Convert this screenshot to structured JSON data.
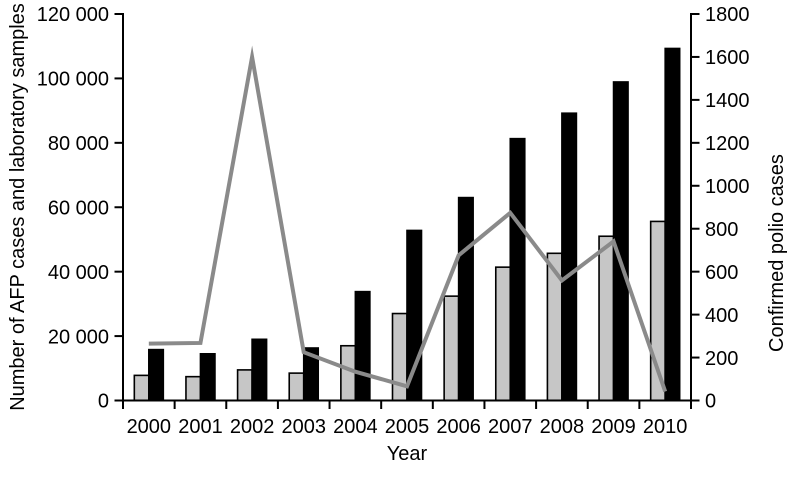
{
  "chart_data": {
    "type": "bar+line",
    "xlabel": "Year",
    "ylabel_left": "Number of AFP cases and laboratory samples",
    "ylabel_right": "Confirmed polio cases",
    "categories": [
      "2000",
      "2001",
      "2002",
      "2003",
      "2004",
      "2005",
      "2006",
      "2007",
      "2008",
      "2009",
      "2010"
    ],
    "series": [
      {
        "id": "afp-cases",
        "name": "AFP cases",
        "type": "bar",
        "axis": "left",
        "color": "#c6c6c6",
        "outline": "#000000",
        "values": [
          7800,
          7400,
          9500,
          8500,
          17000,
          27000,
          32400,
          41400,
          45700,
          51000,
          55600
        ]
      },
      {
        "id": "laboratory-samples",
        "name": "Laboratory samples",
        "type": "bar",
        "axis": "left",
        "color": "#000000",
        "outline": "#000000",
        "values": [
          15800,
          14500,
          19000,
          16300,
          33800,
          52800,
          63000,
          81300,
          89200,
          98900,
          109300
        ]
      },
      {
        "id": "confirmed-polio-cases",
        "name": "Confirmed polio cases",
        "type": "line",
        "axis": "right",
        "color": "#8a8a8a",
        "values": [
          265,
          268,
          1600,
          225,
          134,
          66,
          676,
          874,
          559,
          741,
          42
        ]
      }
    ],
    "left_axis": {
      "lim": [
        0,
        120000
      ],
      "tick_values": [
        0,
        20000,
        40000,
        60000,
        80000,
        100000,
        120000
      ],
      "tick_labels": [
        "0",
        "20 000",
        "40 000",
        "60 000",
        "80 000",
        "100 000",
        "120 000"
      ]
    },
    "right_axis": {
      "lim": [
        0,
        1800
      ],
      "tick_values": [
        0,
        200,
        400,
        600,
        800,
        1000,
        1200,
        1400,
        1600,
        1800
      ],
      "tick_labels": [
        "0",
        "200",
        "400",
        "600",
        "800",
        "1000",
        "1200",
        "1400",
        "1600",
        "1800"
      ]
    },
    "grid": false,
    "legend": "none",
    "title": ""
  }
}
